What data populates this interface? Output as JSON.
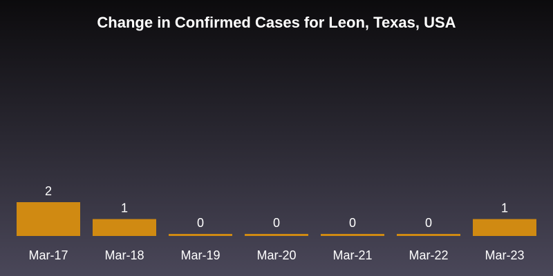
{
  "chart_data": {
    "type": "bar",
    "title": "Change in Confirmed Cases for Leon, Texas, USA",
    "categories": [
      "Mar-17",
      "Mar-18",
      "Mar-19",
      "Mar-20",
      "Mar-21",
      "Mar-22",
      "Mar-23"
    ],
    "values": [
      2,
      1,
      0,
      0,
      0,
      0,
      1
    ],
    "value_labels": [
      "2",
      "1",
      "0",
      "0",
      "0",
      "0",
      "1"
    ],
    "xlabel": "",
    "ylabel": "",
    "ylim": [
      0,
      2
    ],
    "grid": false,
    "legend": "none",
    "colors": {
      "bar": "#d08a12",
      "text": "#ffffff"
    }
  }
}
